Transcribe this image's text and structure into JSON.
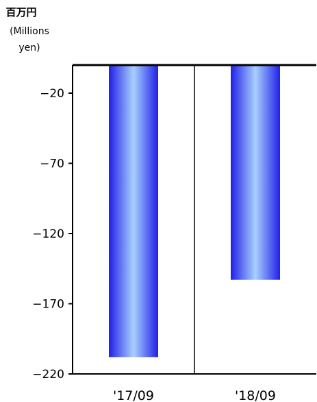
{
  "unit": {
    "jp": "百万円",
    "en_line1": "(Millions",
    "en_line2": "yen)"
  },
  "chart_data": {
    "type": "bar",
    "categories": [
      "'17/09",
      "'18/09"
    ],
    "values": [
      -208,
      -153
    ],
    "ylabel": "百万円 (Millions yen)",
    "ylim": [
      -220,
      0
    ],
    "yticks": [
      -20,
      -70,
      -120,
      -170,
      -220
    ],
    "grid": false,
    "bar_gradient": {
      "edge": "#2020e8",
      "center": "#a8d0ff"
    }
  }
}
